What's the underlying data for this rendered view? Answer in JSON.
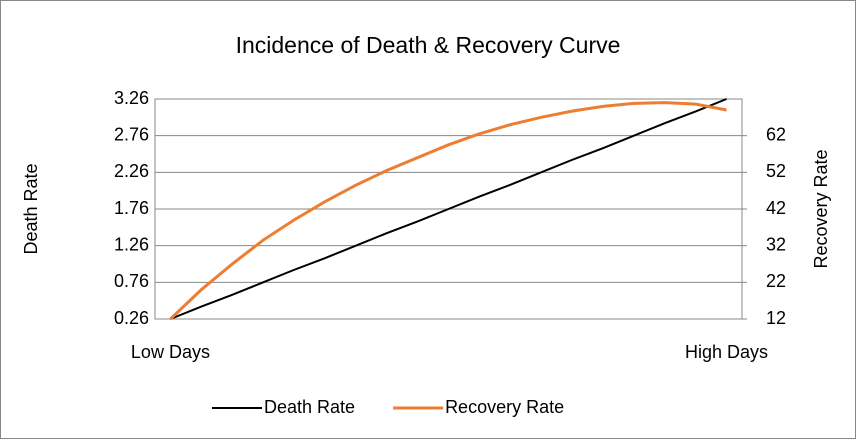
{
  "chart_data": {
    "type": "line",
    "title": "Incidence of Death & Recovery Curve",
    "ylabel": "Death Rate",
    "y2label": "Recovery Rate",
    "categories": [
      "Low Days",
      null,
      null,
      null,
      null,
      null,
      null,
      null,
      null,
      null,
      null,
      null,
      null,
      null,
      null,
      null,
      null,
      null,
      "High Days"
    ],
    "series": [
      {
        "name": "Death Rate",
        "color": "#000000",
        "values": [
          0.26,
          0.43,
          0.59,
          0.76,
          0.93,
          1.09,
          1.26,
          1.43,
          1.59,
          1.76,
          1.93,
          2.09,
          2.26,
          2.43,
          2.59,
          2.76,
          2.93,
          3.09,
          3.26
        ]
      },
      {
        "name": "Recovery Rate",
        "color": "#ED7D31",
        "axis": "y2",
        "values": [
          12,
          20,
          27,
          33.5,
          39,
          44,
          48.5,
          52.5,
          56,
          59.5,
          62.5,
          65,
          67,
          68.7,
          70,
          70.8,
          71,
          70.6,
          69
        ]
      }
    ],
    "ylim": [
      0.26,
      3.26
    ],
    "yticks": [
      0.26,
      0.76,
      1.26,
      1.76,
      2.26,
      2.76,
      3.26
    ],
    "y2lim": [
      12,
      72
    ],
    "y2ticks": [
      12,
      22,
      32,
      42,
      52,
      62
    ],
    "grid": true,
    "legend": "bottom"
  }
}
